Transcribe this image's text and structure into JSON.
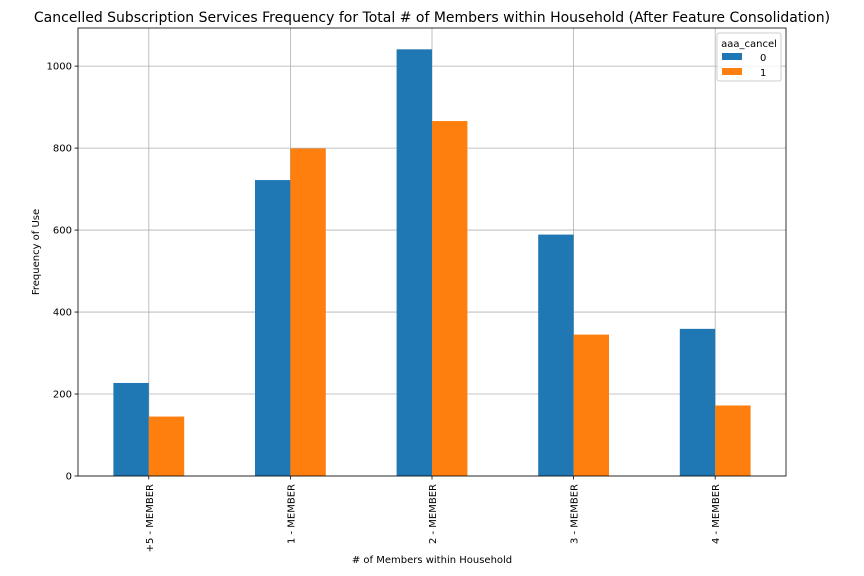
{
  "chart_data": {
    "type": "bar",
    "title": "Cancelled Subscription Services Frequency for Total # of Members within Household (After Feature Consolidation)",
    "xlabel": "# of Members within Household",
    "ylabel": "Frequency of Use",
    "categories": [
      "+5 - MEMBER",
      "1 - MEMBER",
      "2 - MEMBER",
      "3 - MEMBER",
      "4 - MEMBER"
    ],
    "series": [
      {
        "name": "0",
        "color": "#1f77b4",
        "values": [
          227,
          722,
          1041,
          589,
          359
        ]
      },
      {
        "name": "1",
        "color": "#ff7f0e",
        "values": [
          145,
          799,
          866,
          345,
          172
        ]
      }
    ],
    "ylim": [
      0,
      1093
    ],
    "yticks": [
      0,
      200,
      400,
      600,
      800,
      1000
    ],
    "grid": true,
    "legend": {
      "title": "aaa_cancel",
      "placement": "top-right"
    }
  }
}
